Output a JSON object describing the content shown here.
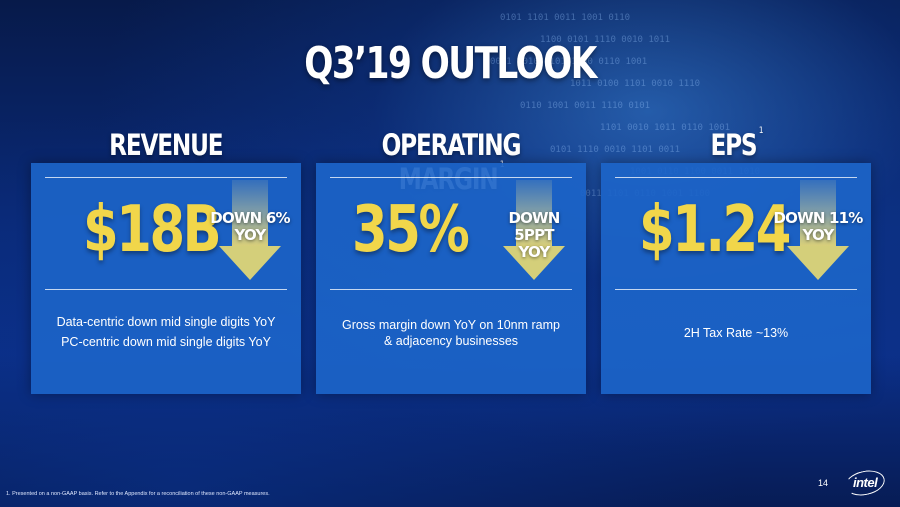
{
  "slide": {
    "title": "Q3’19 OUTLOOK",
    "page_number": "14",
    "footnote": "1. Presented on a non-GAAP basis. Refer to the Appendix for a reconciliation of these non-GAAP measures.",
    "logo_text": "intel",
    "accent_color": "#f1d64a",
    "panel_color": "#1c64c8"
  },
  "columns": [
    {
      "heading": "REVENUE",
      "footnote_mark": "",
      "value": "$18B",
      "change_line1": "DOWN 6%",
      "change_line2": "YOY",
      "arrow_icon": "down-arrow-icon",
      "notes": [
        "Data-centric down mid single digits YoY",
        "PC-centric down mid single digits YoY"
      ]
    },
    {
      "heading": "OPERATING MARGIN",
      "footnote_mark": "1",
      "value": "35%",
      "change_line1": "DOWN 5PPT",
      "change_line2": "YOY",
      "arrow_icon": "down-arrow-icon",
      "notes": [
        "Gross margin down YoY on 10nm ramp",
        "& adjacency businesses"
      ]
    },
    {
      "heading": "EPS",
      "footnote_mark": "1",
      "value": "$1.24",
      "change_line1": "DOWN 11%",
      "change_line2": "YOY",
      "arrow_icon": "down-arrow-icon",
      "notes": [
        "2H Tax Rate ~13%"
      ]
    }
  ]
}
